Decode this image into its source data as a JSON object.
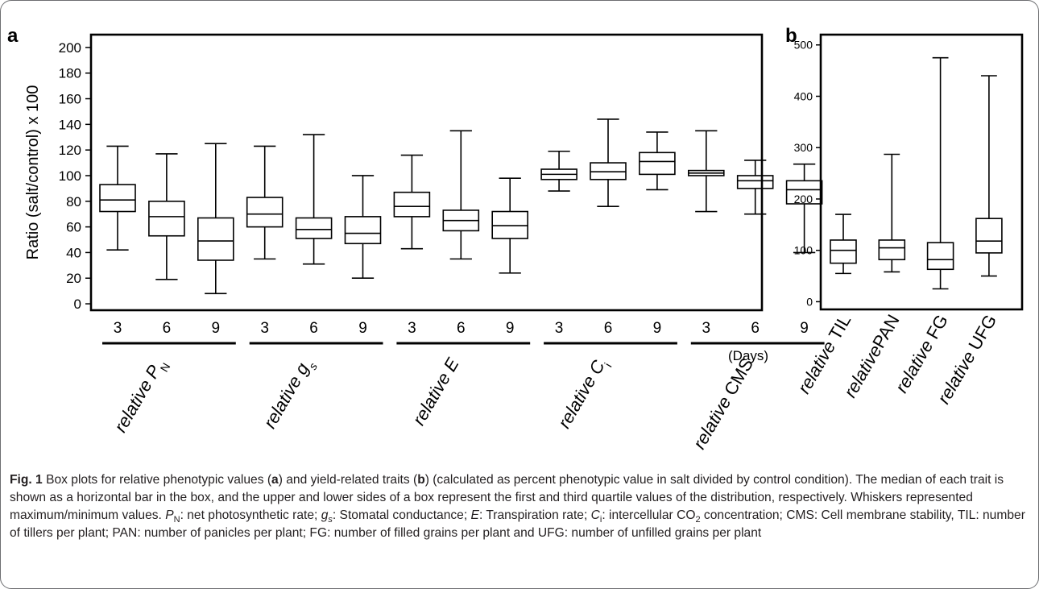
{
  "chart_data": [
    {
      "panel": "a",
      "type": "box",
      "ylabel": "Ratio (salt/control) x 100",
      "ylim": [
        -5,
        210
      ],
      "yticks": [
        0,
        20,
        40,
        60,
        80,
        100,
        120,
        140,
        160,
        180,
        200
      ],
      "x_unit": "(Days)",
      "groups": [
        {
          "label_pre": "relative ",
          "label_sym": "P",
          "label_sub": "N",
          "label_sub_italic": false,
          "boxes": [
            {
              "day": "3",
              "min": 42,
              "q1": 72,
              "median": 81,
              "q3": 93,
              "max": 123
            },
            {
              "day": "6",
              "min": 19,
              "q1": 53,
              "median": 68,
              "q3": 80,
              "max": 117
            },
            {
              "day": "9",
              "min": 8,
              "q1": 34,
              "median": 49,
              "q3": 67,
              "max": 125
            }
          ]
        },
        {
          "label_pre": "relative ",
          "label_sym": "g",
          "label_sub": "s",
          "label_sub_italic": true,
          "boxes": [
            {
              "day": "3",
              "min": 35,
              "q1": 60,
              "median": 70,
              "q3": 83,
              "max": 123
            },
            {
              "day": "6",
              "min": 31,
              "q1": 51,
              "median": 58,
              "q3": 67,
              "max": 132
            },
            {
              "day": "9",
              "min": 20,
              "q1": 47,
              "median": 55,
              "q3": 68,
              "max": 100
            }
          ]
        },
        {
          "label_pre": "relative ",
          "label_sym": "E",
          "label_sub": "",
          "label_sub_italic": false,
          "boxes": [
            {
              "day": "3",
              "min": 43,
              "q1": 68,
              "median": 76,
              "q3": 87,
              "max": 116
            },
            {
              "day": "6",
              "min": 35,
              "q1": 57,
              "median": 65,
              "q3": 73,
              "max": 135
            },
            {
              "day": "9",
              "min": 24,
              "q1": 51,
              "median": 61,
              "q3": 72,
              "max": 98
            }
          ]
        },
        {
          "label_pre": "relative ",
          "label_sym": "C",
          "label_sub": "i",
          "label_sub_italic": false,
          "boxes": [
            {
              "day": "3",
              "min": 88,
              "q1": 97,
              "median": 101,
              "q3": 105,
              "max": 119
            },
            {
              "day": "6",
              "min": 76,
              "q1": 97,
              "median": 103,
              "q3": 110,
              "max": 144
            },
            {
              "day": "9",
              "min": 89,
              "q1": 101,
              "median": 111,
              "q3": 118,
              "max": 134
            }
          ]
        },
        {
          "label_pre": "relative ",
          "label_sym": "CMS",
          "label_sub": "",
          "label_sub_italic": false,
          "sym_upright": true,
          "boxes": [
            {
              "day": "3",
              "min": 72,
              "q1": 100,
              "median": 102,
              "q3": 104,
              "max": 135
            },
            {
              "day": "6",
              "min": 70,
              "q1": 90,
              "median": 96,
              "q3": 100,
              "max": 112
            },
            {
              "day": "9",
              "min": 40,
              "q1": 78,
              "median": 89,
              "q3": 96,
              "max": 109
            }
          ]
        }
      ]
    },
    {
      "panel": "b",
      "type": "box",
      "ylim": [
        -15,
        520
      ],
      "yticks": [
        0,
        100,
        200,
        300,
        400,
        500
      ],
      "boxes": [
        {
          "label_pre": "relative ",
          "label_sym": "TIL",
          "min": 55,
          "q1": 75,
          "median": 100,
          "q3": 120,
          "max": 170
        },
        {
          "label_pre": "relative",
          "label_sym": "PAN",
          "min": 58,
          "q1": 82,
          "median": 105,
          "q3": 120,
          "max": 287
        },
        {
          "label_pre": "relative ",
          "label_sym": "FG",
          "min": 25,
          "q1": 63,
          "median": 82,
          "q3": 115,
          "max": 475
        },
        {
          "label_pre": "relative ",
          "label_sym": "UFG",
          "min": 50,
          "q1": 95,
          "median": 118,
          "q3": 162,
          "max": 440
        }
      ]
    }
  ],
  "caption": {
    "fig_label": "Fig. 1",
    "parts": [
      {
        "t": " Box plots for relative phenotypic values ("
      },
      {
        "t": "a",
        "b": true
      },
      {
        "t": ") and yield-related traits ("
      },
      {
        "t": "b",
        "b": true
      },
      {
        "t": ") (calculated as percent phenotypic value in salt divided by control condition). The median of each trait is shown as a horizontal bar in the box, and the upper and lower sides of a box represent the first and third quartile values of the distribution, respectively. Whiskers represented maximum/minimum values. "
      },
      {
        "t": "P",
        "i": true
      },
      {
        "t": "N",
        "sub": true
      },
      {
        "t": ": net photosynthetic rate; "
      },
      {
        "t": "g",
        "i": true
      },
      {
        "t": "s",
        "sub": true,
        "i": true
      },
      {
        "t": ": Stomatal conductance; "
      },
      {
        "t": "E",
        "i": true
      },
      {
        "t": ": Transpiration rate; "
      },
      {
        "t": "C",
        "i": true
      },
      {
        "t": "i",
        "sub": true
      },
      {
        "t": ": intercellular CO"
      },
      {
        "t": "2",
        "sub": true
      },
      {
        "t": " concentration; CMS: Cell membrane stability, TIL: number of tillers per plant; PAN: number of panicles per plant; FG: number of filled grains per plant and UFG: number of unfilled grains per plant"
      }
    ]
  }
}
